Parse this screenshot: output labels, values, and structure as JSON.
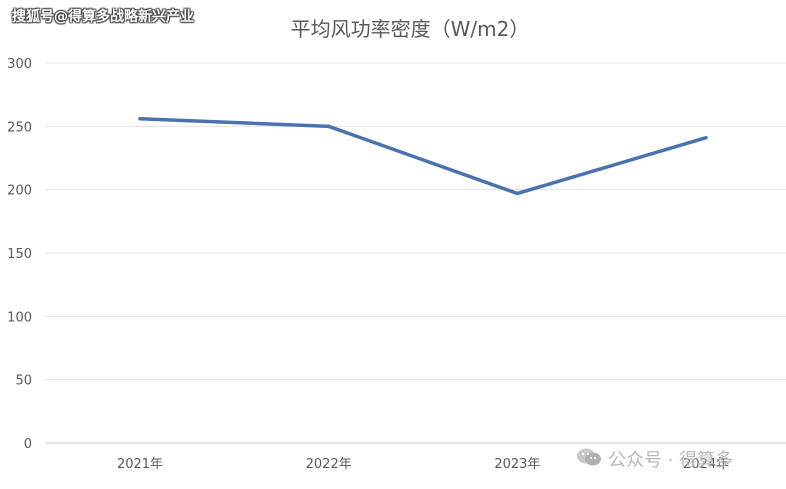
{
  "watermarks": {
    "top": "搜狐号@得算多战略新兴产业",
    "bottom": "公众号 · 得算多"
  },
  "chart_data": {
    "type": "line",
    "title": "平均风功率密度（W/m2）",
    "categories": [
      "2021年",
      "2022年",
      "2023年",
      "2024年"
    ],
    "series": [
      {
        "values": [
          256,
          250,
          197,
          241
        ],
        "color": "#4a72b0"
      }
    ],
    "ylim": [
      0,
      300
    ],
    "yticks": [
      0,
      50,
      100,
      150,
      200,
      250,
      300
    ],
    "grid": true,
    "legend": "none"
  }
}
